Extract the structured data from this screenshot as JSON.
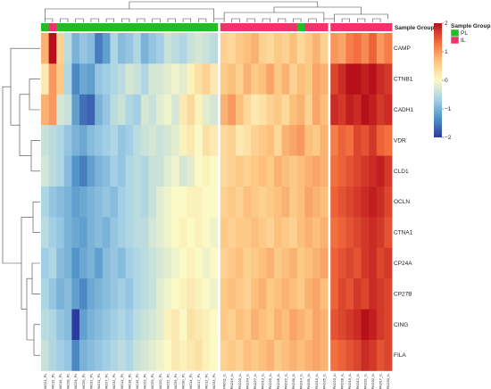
{
  "chart_data": {
    "type": "heatmap",
    "title": "",
    "annotation_title": "Sample Group",
    "legend": {
      "title": "Sample Group",
      "groups": [
        {
          "name": "PL",
          "color": "#1fbf1f"
        },
        {
          "name": "IL",
          "color": "#f0346b"
        }
      ]
    },
    "color_scale": {
      "min": -2,
      "max": 2,
      "ticks": [
        2,
        1,
        0,
        -1,
        -2
      ],
      "colors": [
        "#2c3c9c",
        "#4f92c8",
        "#a6d2e6",
        "#fbf9c6",
        "#fcc47f",
        "#f36b3c",
        "#b8101a"
      ]
    },
    "genes": [
      "CAMP",
      "CTNB1",
      "CADH1",
      "VDR",
      "CLD1",
      "OCLN",
      "CTNA1",
      "CP24A",
      "CP27B",
      "CING",
      "FILA"
    ],
    "samples": [
      {
        "label": "PAD21_PL",
        "group": "PL"
      },
      {
        "label": "PAD19_PL",
        "group": "IL"
      },
      {
        "label": "PAD15_PL",
        "group": "PL"
      },
      {
        "label": "PAD28_PL",
        "group": "PL"
      },
      {
        "label": "PAD24_PL",
        "group": "PL"
      },
      {
        "label": "PAD26_PL",
        "group": "PL"
      },
      {
        "label": "PAD31_PL",
        "group": "PL"
      },
      {
        "label": "PAD11_PL",
        "group": "PL"
      },
      {
        "label": "PAD27_PL",
        "group": "PL"
      },
      {
        "label": "PAD32_PL",
        "group": "PL"
      },
      {
        "label": "PAD13_PL",
        "group": "PL"
      },
      {
        "label": "PAD18_PL",
        "group": "PL"
      },
      {
        "label": "PAD16_PL",
        "group": "PL"
      },
      {
        "label": "PAD23_PL",
        "group": "PL"
      },
      {
        "label": "PAD29_PL",
        "group": "PL"
      },
      {
        "label": "PAD20_PL",
        "group": "PL"
      },
      {
        "label": "PAD22_PL",
        "group": "PL"
      },
      {
        "label": "PAD25_PL",
        "group": "PL"
      },
      {
        "label": "PAD30_PL",
        "group": "PL"
      },
      {
        "label": "PAD14_PL",
        "group": "PL"
      },
      {
        "label": "PAD17_PL",
        "group": "PL"
      },
      {
        "label": "PAD12_PL",
        "group": "PL"
      },
      {
        "label": "PAD33_PL",
        "group": "PL"
      },
      {
        "label": "PAD11_IL",
        "group": "IL"
      },
      {
        "label": "PAD16_IL",
        "group": "IL"
      },
      {
        "label": "PAD20_IL",
        "group": "IL"
      },
      {
        "label": "PAD24_IL",
        "group": "IL"
      },
      {
        "label": "PAD27_IL",
        "group": "IL"
      },
      {
        "label": "PAD13_IL",
        "group": "IL"
      },
      {
        "label": "PAD29_IL",
        "group": "IL"
      },
      {
        "label": "PAD26_IL",
        "group": "IL"
      },
      {
        "label": "PAD22_IL",
        "group": "IL"
      },
      {
        "label": "PAD30_IL",
        "group": "IL"
      },
      {
        "label": "PAD14_IL",
        "group": "PL"
      },
      {
        "label": "PAD31_IL",
        "group": "IL"
      },
      {
        "label": "PAD15_IL",
        "group": "IL"
      },
      {
        "label": "PAD25_IL",
        "group": "IL"
      },
      {
        "label": "PAD23_IL",
        "group": "IL"
      },
      {
        "label": "PAD28_IL",
        "group": "IL"
      },
      {
        "label": "PAD19_IL",
        "group": "IL"
      },
      {
        "label": "PAD12_IL",
        "group": "IL"
      },
      {
        "label": "PAD21_IL",
        "group": "IL"
      },
      {
        "label": "PAD32_IL",
        "group": "IL"
      },
      {
        "label": "PAD17_IL",
        "group": "IL"
      },
      {
        "label": "PAD33_IL",
        "group": "IL"
      }
    ],
    "values": [
      [
        0.8,
        2.0,
        0.5,
        -0.5,
        -1.0,
        -0.8,
        -0.9,
        -1.5,
        -1.2,
        -0.6,
        -0.9,
        -0.8,
        -0.6,
        -1.0,
        -0.8,
        -0.7,
        -0.4,
        -0.5,
        -0.6,
        -0.4,
        -0.3,
        -0.4,
        -0.5,
        0.5,
        0.4,
        0.6,
        0.7,
        0.8,
        0.5,
        0.4,
        0.6,
        0.5,
        0.7,
        0.4,
        0.6,
        0.8,
        0.5,
        1.0,
        0.9,
        1.2,
        1.3,
        1.1,
        1.4,
        1.0,
        1.2
      ],
      [
        0.2,
        1.0,
        0.6,
        -0.6,
        -1.4,
        -1.1,
        -1.2,
        -0.8,
        -0.7,
        -0.6,
        -0.5,
        -0.3,
        -0.4,
        -0.6,
        -0.3,
        -0.3,
        -0.2,
        -0.1,
        -0.2,
        0.1,
        0.3,
        0.5,
        0.2,
        0.6,
        0.7,
        0.5,
        0.8,
        0.6,
        0.7,
        0.9,
        0.6,
        0.8,
        0.5,
        0.7,
        0.6,
        0.9,
        0.8,
        1.6,
        1.8,
        2.0,
        2.1,
        1.9,
        2.0,
        1.8,
        1.7
      ],
      [
        0.8,
        1.0,
        -0.3,
        -0.4,
        -1.2,
        -1.6,
        -1.7,
        -1.0,
        -0.8,
        -0.5,
        -0.4,
        -0.6,
        -0.7,
        -0.3,
        -0.4,
        -0.2,
        -0.1,
        -0.3,
        0.2,
        0.4,
        0.1,
        -0.2,
        -0.3,
        0.8,
        1.0,
        0.7,
        0.4,
        0.2,
        0.3,
        0.5,
        0.6,
        0.4,
        0.7,
        0.8,
        0.5,
        0.9,
        0.7,
        1.8,
        1.7,
        1.9,
        1.8,
        2.0,
        1.9,
        1.7,
        1.8
      ],
      [
        -0.4,
        -0.5,
        -0.6,
        -0.8,
        -1.0,
        -1.1,
        -0.9,
        -0.8,
        -0.7,
        -0.6,
        -0.8,
        -0.7,
        -0.5,
        -0.4,
        -0.3,
        -0.4,
        -0.3,
        -0.2,
        0.1,
        0.2,
        0.0,
        0.3,
        0.2,
        0.4,
        0.5,
        0.2,
        0.3,
        0.5,
        0.6,
        0.7,
        0.4,
        0.8,
        0.9,
        1.0,
        0.7,
        0.6,
        0.8,
        1.2,
        1.4,
        1.3,
        1.6,
        1.5,
        1.7,
        1.4,
        1.3
      ],
      [
        -0.3,
        -0.5,
        -0.6,
        -0.9,
        -1.3,
        -1.5,
        -1.2,
        -1.0,
        -0.9,
        -0.7,
        -0.8,
        -0.6,
        -0.5,
        -0.6,
        -0.4,
        -0.4,
        -0.2,
        -0.1,
        -0.3,
        -0.2,
        0.0,
        0.1,
        0.0,
        0.4,
        0.5,
        0.6,
        0.5,
        0.6,
        0.7,
        0.6,
        0.8,
        0.7,
        0.6,
        0.7,
        0.8,
        0.9,
        0.8,
        1.3,
        1.4,
        1.5,
        1.6,
        1.7,
        1.8,
        1.9,
        1.7
      ],
      [
        -0.6,
        -0.8,
        -0.9,
        -1.0,
        -1.2,
        -1.1,
        -1.0,
        -0.9,
        -0.8,
        -0.9,
        -0.7,
        -0.6,
        -0.5,
        -0.6,
        -0.4,
        -0.2,
        -0.1,
        0.0,
        0.0,
        0.1,
        0.1,
        0.0,
        0.0,
        0.5,
        0.6,
        0.5,
        0.7,
        0.6,
        0.5,
        0.6,
        0.7,
        0.8,
        0.6,
        0.7,
        0.9,
        0.8,
        0.7,
        1.4,
        1.5,
        1.6,
        1.7,
        1.8,
        1.9,
        1.8,
        1.6
      ],
      [
        -0.5,
        -0.7,
        -0.8,
        -1.0,
        -1.1,
        -1.2,
        -1.0,
        -0.9,
        -1.0,
        -0.8,
        -0.7,
        -0.6,
        -0.5,
        -0.5,
        -0.3,
        -0.2,
        -0.1,
        0.0,
        0.1,
        0.0,
        0.1,
        0.0,
        -0.1,
        0.6,
        0.5,
        0.6,
        0.6,
        0.7,
        0.6,
        0.5,
        0.7,
        0.6,
        0.5,
        0.7,
        0.8,
        0.7,
        0.8,
        1.3,
        1.4,
        1.5,
        1.6,
        1.7,
        1.8,
        1.7,
        1.5
      ],
      [
        -0.7,
        -0.6,
        -0.9,
        -1.0,
        -1.3,
        -1.1,
        -1.0,
        -1.2,
        -0.9,
        -0.8,
        -0.9,
        -0.7,
        -0.6,
        -0.5,
        -0.4,
        -0.3,
        -0.2,
        -0.1,
        0.0,
        0.1,
        0.0,
        -0.1,
        0.0,
        0.5,
        0.6,
        0.7,
        0.5,
        0.6,
        0.7,
        0.8,
        0.6,
        0.7,
        0.8,
        0.6,
        0.7,
        0.8,
        0.9,
        1.4,
        1.5,
        1.6,
        1.5,
        1.7,
        1.8,
        1.6,
        1.7
      ],
      [
        -0.6,
        -0.8,
        -1.0,
        -0.9,
        -1.2,
        -1.4,
        -1.1,
        -1.0,
        -0.9,
        -0.8,
        -0.7,
        -0.8,
        -0.6,
        -0.5,
        -0.4,
        -0.2,
        -0.1,
        0.0,
        0.1,
        0.2,
        0.1,
        0.0,
        -0.1,
        0.6,
        0.7,
        0.6,
        0.5,
        0.7,
        0.8,
        0.6,
        0.7,
        0.8,
        0.7,
        0.6,
        0.8,
        0.9,
        0.7,
        1.4,
        1.6,
        1.5,
        1.7,
        1.6,
        1.8,
        1.7,
        1.6
      ],
      [
        -0.5,
        -0.6,
        -0.8,
        -0.9,
        -2.0,
        -1.2,
        -1.0,
        -0.9,
        -0.8,
        -0.7,
        -0.6,
        -0.7,
        -0.5,
        -0.4,
        -0.3,
        -0.2,
        0.1,
        0.2,
        0.0,
        0.3,
        0.2,
        0.1,
        0.0,
        0.6,
        0.5,
        0.7,
        0.6,
        0.8,
        0.7,
        0.6,
        0.8,
        0.7,
        0.9,
        0.8,
        0.7,
        0.9,
        0.8,
        1.5,
        1.6,
        1.7,
        1.8,
        2.0,
        1.9,
        1.7,
        1.6
      ],
      [
        -0.4,
        -0.6,
        -0.7,
        -0.8,
        -1.4,
        -1.0,
        -0.9,
        -0.8,
        -0.7,
        -0.6,
        -0.5,
        -0.6,
        -0.4,
        -0.3,
        -0.2,
        -0.1,
        0.0,
        0.2,
        0.1,
        0.2,
        0.3,
        0.1,
        0.0,
        0.5,
        0.6,
        0.5,
        0.7,
        0.6,
        0.7,
        0.8,
        0.6,
        0.7,
        0.8,
        0.7,
        0.8,
        0.9,
        0.8,
        1.3,
        1.4,
        1.5,
        1.6,
        1.8,
        1.7,
        1.5,
        1.6
      ]
    ]
  }
}
